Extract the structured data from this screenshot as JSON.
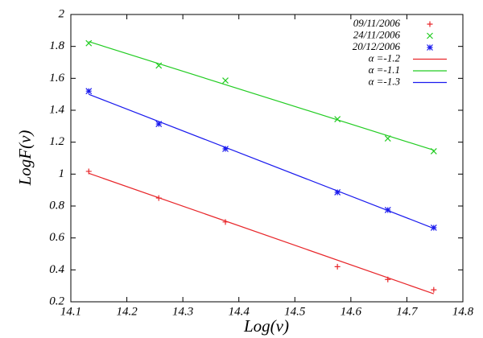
{
  "chart_data": {
    "type": "scatter",
    "x_label": "Log(ν)",
    "y_label": "LogF(ν)",
    "xlim": [
      14.1,
      14.8
    ],
    "xticks": [
      14.1,
      14.2,
      14.3,
      14.4,
      14.5,
      14.6,
      14.7,
      14.8
    ],
    "ylim": [
      0.2,
      2
    ],
    "yticks": [
      0.2,
      0.4,
      0.6,
      0.8,
      1,
      1.2,
      1.4,
      1.6,
      1.8,
      2
    ],
    "grid": false,
    "legend": "upper right",
    "series": [
      {
        "name": "09/11/2006",
        "color": "#e8262a",
        "kind": "points",
        "marker": "plus",
        "x": [
          14.132,
          14.257,
          14.376,
          14.576,
          14.666,
          14.748
        ],
        "values": [
          1.017,
          0.85,
          0.7,
          0.42,
          0.34,
          0.275
        ]
      },
      {
        "name": "24/11/2006",
        "color": "#22cc22",
        "kind": "points",
        "marker": "cross",
        "x": [
          14.132,
          14.257,
          14.376,
          14.576,
          14.666,
          14.748
        ],
        "values": [
          1.82,
          1.68,
          1.586,
          1.344,
          1.223,
          1.143
        ]
      },
      {
        "name": "20/12/2006",
        "color": "#1a1aee",
        "kind": "points",
        "marker": "star",
        "x": [
          14.132,
          14.257,
          14.376,
          14.576,
          14.666,
          14.748
        ],
        "values": [
          1.52,
          1.314,
          1.158,
          0.886,
          0.775,
          0.664
        ]
      },
      {
        "name": "α =-1.2",
        "color": "#e8262a",
        "kind": "line",
        "x": [
          14.132,
          14.748
        ],
        "values": [
          1.005,
          0.25
        ]
      },
      {
        "name": "α =-1.1",
        "color": "#22cc22",
        "kind": "line",
        "x": [
          14.132,
          14.748
        ],
        "values": [
          1.83,
          1.15
        ]
      },
      {
        "name": "α =-1.3",
        "color": "#1a1aee",
        "kind": "line",
        "x": [
          14.132,
          14.748
        ],
        "values": [
          1.5,
          0.66
        ]
      }
    ]
  }
}
